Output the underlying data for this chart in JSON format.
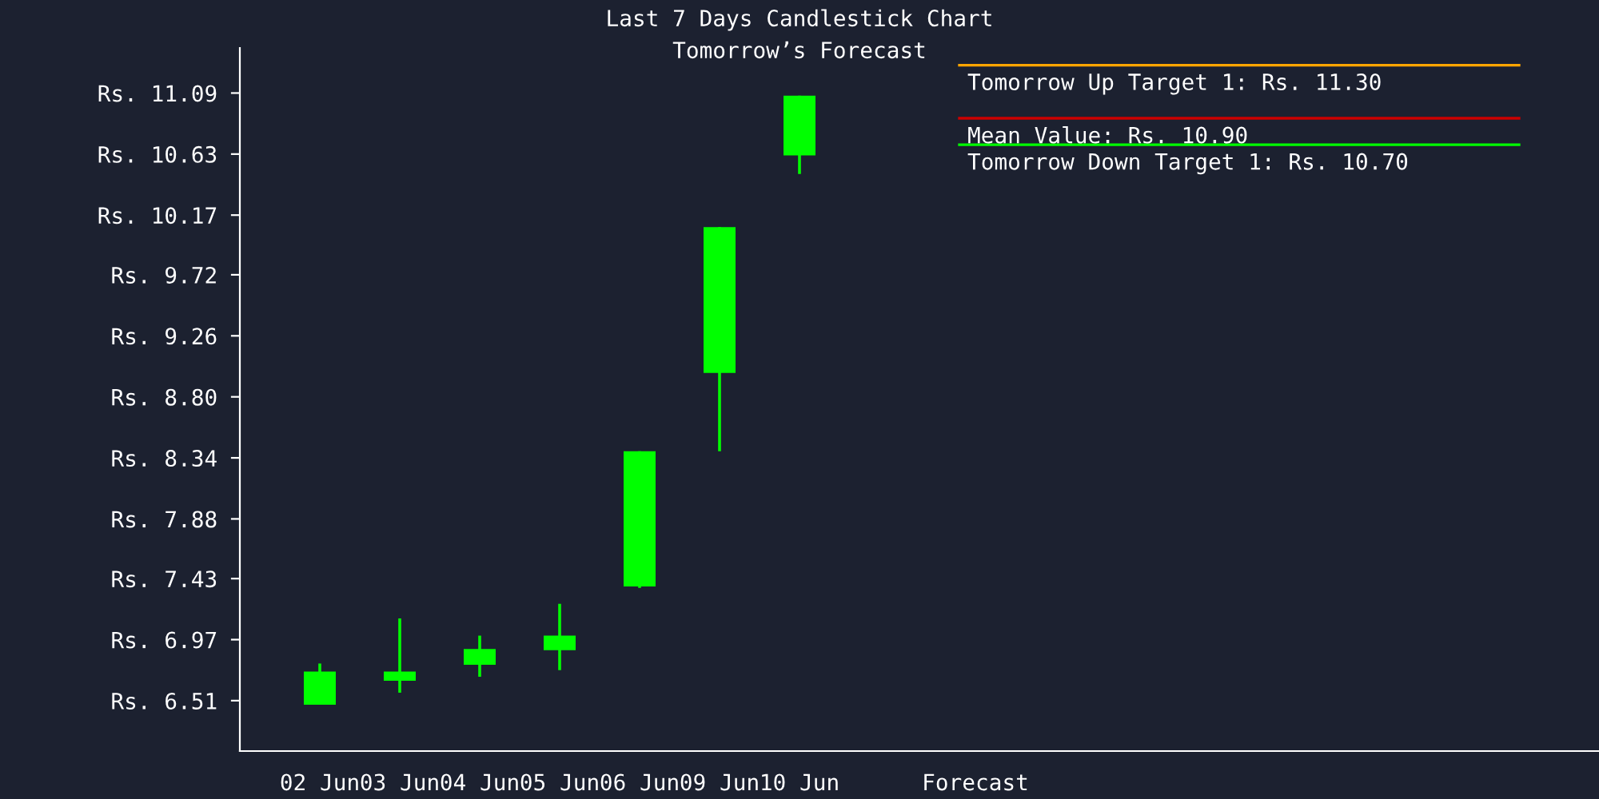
{
  "chart_data": {
    "type": "candlestick",
    "title": "Last 7 Days Candlestick Chart",
    "subtitle": "Tomorrow’s Forecast",
    "categories": [
      "02 Jun",
      "03 Jun",
      "04 Jun",
      "05 Jun",
      "06 Jun",
      "09 Jun",
      "10 Jun"
    ],
    "series": [
      {
        "color": "#00ff00",
        "ohlc": [
          [
            6.48,
            6.79,
            6.48,
            6.73
          ],
          [
            6.66,
            7.13,
            6.57,
            6.73
          ],
          [
            6.78,
            7.0,
            6.69,
            6.9
          ],
          [
            6.89,
            7.24,
            6.74,
            7.0
          ],
          [
            7.37,
            8.39,
            7.36,
            8.39
          ],
          [
            8.98,
            10.08,
            8.39,
            10.08
          ],
          [
            10.62,
            11.07,
            10.48,
            11.07
          ]
        ]
      }
    ],
    "ylim": [
      6.13,
      11.43
    ],
    "yticks": [
      {
        "value": 6.51,
        "label": "Rs. 6.51"
      },
      {
        "value": 6.97,
        "label": "Rs. 6.97"
      },
      {
        "value": 7.43,
        "label": "Rs. 7.43"
      },
      {
        "value": 7.88,
        "label": "Rs. 7.88"
      },
      {
        "value": 8.34,
        "label": "Rs. 8.34"
      },
      {
        "value": 8.8,
        "label": "Rs. 8.80"
      },
      {
        "value": 9.26,
        "label": "Rs. 9.26"
      },
      {
        "value": 9.72,
        "label": "Rs. 9.72"
      },
      {
        "value": 10.17,
        "label": "Rs. 10.17"
      },
      {
        "value": 10.63,
        "label": "Rs. 10.63"
      },
      {
        "value": 11.09,
        "label": "Rs. 11.09"
      }
    ],
    "ref_lines": [
      {
        "axis": "y",
        "value": 11.3,
        "label": "Tomorrow Up Target 1: Rs. 11.30",
        "color": "#ffa500"
      },
      {
        "axis": "y",
        "value": 10.9,
        "label": "Mean Value: Rs. 10.90",
        "color": "#cc0000"
      },
      {
        "axis": "y",
        "value": 10.7,
        "label": "Tomorrow Down Target 1: Rs. 10.70",
        "color": "#00ff00"
      }
    ],
    "annotations": [
      "Forecast"
    ],
    "grid": false,
    "legend": false
  }
}
